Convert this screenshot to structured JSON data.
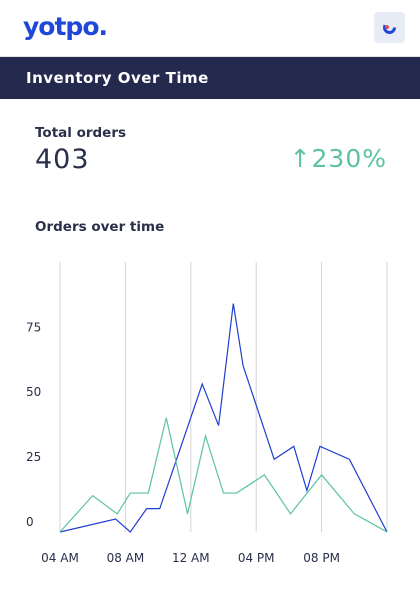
{
  "header": {
    "logo": "yotpo."
  },
  "banner": {
    "title": "Inventory Over Time"
  },
  "summary": {
    "label": "Total orders",
    "value": 403,
    "change": "↑230%"
  },
  "chart_data": {
    "type": "line",
    "title": "Orders over time",
    "xlim": [
      0,
      20
    ],
    "ylim": [
      0,
      104
    ],
    "xticks": [
      {
        "value": 0,
        "label": "04 AM"
      },
      {
        "value": 4,
        "label": "08 AM"
      },
      {
        "value": 8,
        "label": "12 AM"
      },
      {
        "value": 12,
        "label": "04 PM"
      },
      {
        "value": 16,
        "label": "08 PM"
      }
    ],
    "yticks": [
      0,
      25,
      50,
      75
    ],
    "grid": "x",
    "series": [
      {
        "color": "#1f3fd1",
        "x": [
          0,
          3.4,
          4.3,
          5.3,
          6.1,
          8.7,
          9.7,
          10.6,
          11.2,
          13.1,
          14.3,
          15.1,
          15.9,
          17.7,
          20
        ],
        "values": [
          0,
          5,
          0,
          9,
          9,
          57,
          41,
          88,
          64,
          28,
          33,
          16,
          33,
          28,
          0
        ]
      },
      {
        "color": "#5cc3a0",
        "x": [
          0,
          2.0,
          3.5,
          4.3,
          5.4,
          6.5,
          7.8,
          8.9,
          10.0,
          10.8,
          12.5,
          14.1,
          16.0,
          18.0,
          20
        ],
        "values": [
          0,
          14,
          7,
          15,
          15,
          44,
          7,
          37,
          15,
          15,
          22,
          7,
          22,
          7,
          0
        ]
      }
    ]
  }
}
